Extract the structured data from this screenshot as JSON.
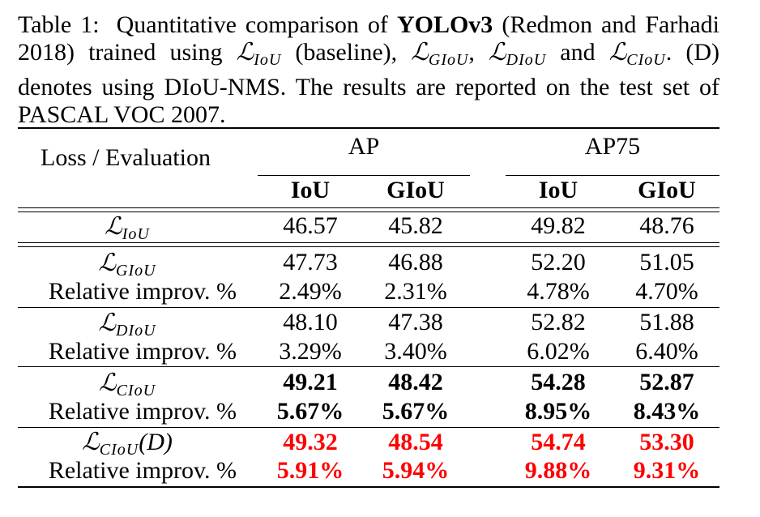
{
  "caption": {
    "label": "Table 1:",
    "t1": "Quantitative comparison of",
    "model": "YOLOv3",
    "t2": "(Redmon and Farhadi 2018) trained using",
    "loss_symbol": "ℒ",
    "iou_sub": "IoU",
    "t3": "(baseline),",
    "giou_sub": "GIoU",
    "comma": ",",
    "diou_sub": "DIoU",
    "and": "and",
    "ciou_sub": "CIoU",
    "t4": ". (D) denotes using DIoU-NMS. The results are reported on the test set of PASCAL VOC 2007."
  },
  "table": {
    "corner_label": "Loss / Evaluation",
    "groups": [
      "AP",
      "AP75"
    ],
    "subheaders": [
      "IoU",
      "GIoU",
      "IoU",
      "GIoU"
    ],
    "loss_symbol": "ℒ",
    "rel_label": "Relative improv. %",
    "rows": [
      {
        "sub": "IoU",
        "suffix": "",
        "values": [
          "46.57",
          "45.82",
          "49.82",
          "48.76"
        ]
      },
      {
        "sub": "GIoU",
        "suffix": "",
        "values": [
          "47.73",
          "46.88",
          "52.20",
          "51.05"
        ],
        "rel": [
          "2.49%",
          "2.31%",
          "4.78%",
          "4.70%"
        ]
      },
      {
        "sub": "DIoU",
        "suffix": "",
        "values": [
          "48.10",
          "47.38",
          "52.82",
          "51.88"
        ],
        "rel": [
          "3.29%",
          "3.40%",
          "6.02%",
          "6.40%"
        ]
      },
      {
        "sub": "CIoU",
        "suffix": "",
        "values": [
          "49.21",
          "48.42",
          "54.28",
          "52.87"
        ],
        "rel": [
          "5.67%",
          "5.67%",
          "8.95%",
          "8.43%"
        ]
      },
      {
        "sub": "CIoU",
        "suffix": "(D)",
        "values": [
          "49.32",
          "48.54",
          "54.74",
          "53.30"
        ],
        "rel": [
          "5.91%",
          "5.94%",
          "9.88%",
          "9.31%"
        ]
      }
    ]
  }
}
